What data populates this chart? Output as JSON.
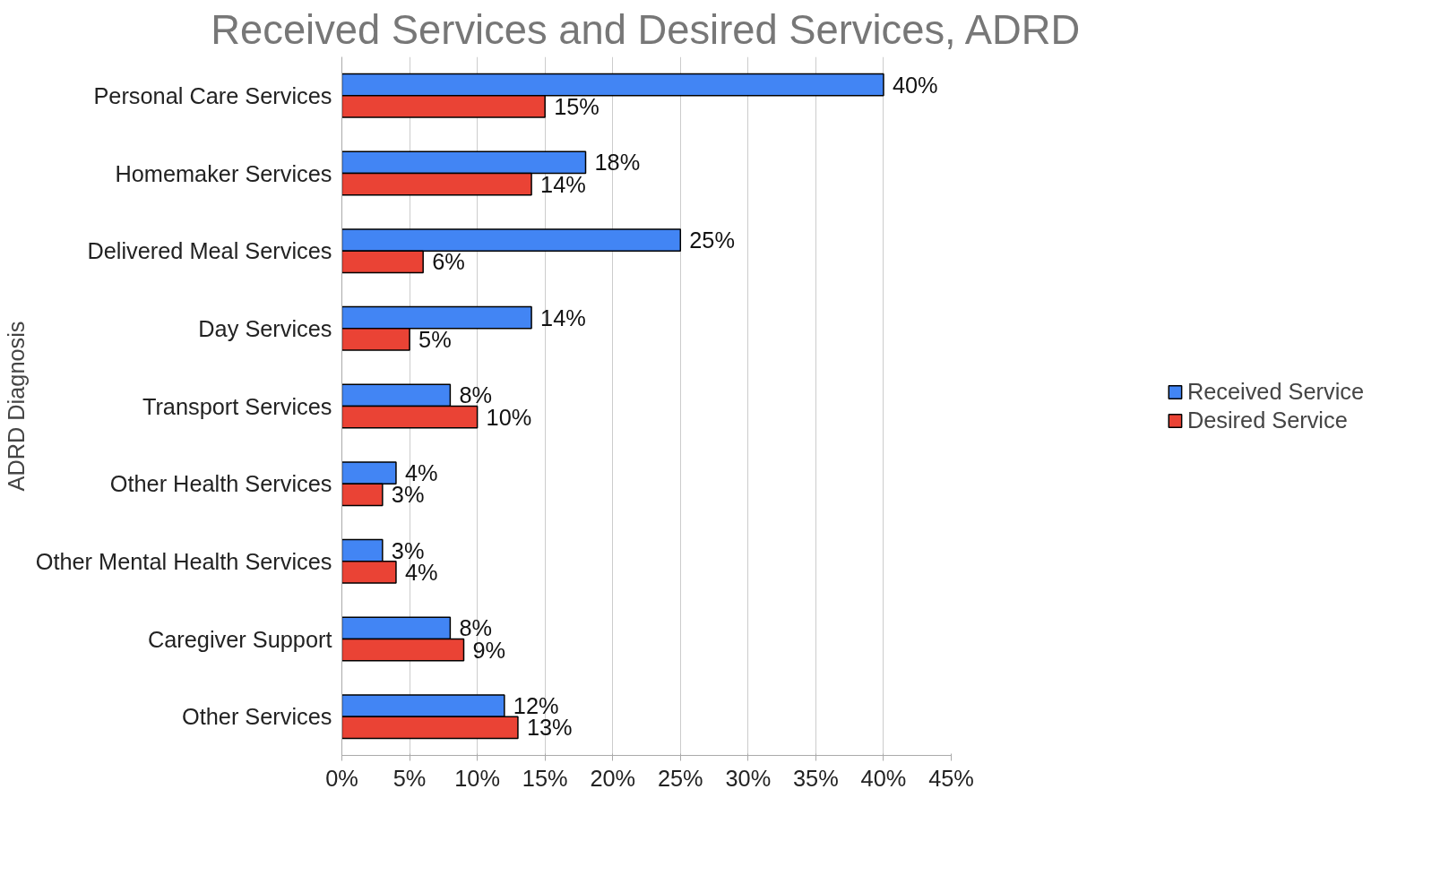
{
  "chart_data": {
    "type": "bar",
    "orientation": "horizontal",
    "title": "Received Services and Desired Services, ADRD",
    "ylabel": "ADRD Diagnosis",
    "categories": [
      "Personal Care Services",
      "Homemaker Services",
      "Delivered Meal Services",
      "Day Services",
      "Transport Services",
      "Other Health Services",
      "Other Mental Health Services",
      "Caregiver Support",
      "Other Services"
    ],
    "series": [
      {
        "name": "Received Service",
        "color": "#4285f4",
        "values": [
          40,
          18,
          25,
          14,
          8,
          4,
          3,
          8,
          12
        ],
        "value_labels": [
          "40%",
          "18%",
          "25%",
          "14%",
          "8%",
          "4%",
          "3%",
          "8%",
          "12%"
        ]
      },
      {
        "name": "Desired Service",
        "color": "#ea4335",
        "values": [
          15,
          14,
          6,
          5,
          10,
          3,
          4,
          9,
          13
        ],
        "value_labels": [
          "15%",
          "14%",
          "6%",
          "5%",
          "10%",
          "3%",
          "4%",
          "9%",
          "13%"
        ]
      }
    ],
    "xlim": [
      0,
      45
    ],
    "xticks": [
      {
        "value": 0,
        "label": "0%"
      },
      {
        "value": 5,
        "label": "5%"
      },
      {
        "value": 10,
        "label": "10%"
      },
      {
        "value": 15,
        "label": "15%"
      },
      {
        "value": 20,
        "label": "20%"
      },
      {
        "value": 25,
        "label": "25%"
      },
      {
        "value": 30,
        "label": "30%"
      },
      {
        "value": 35,
        "label": "35%"
      },
      {
        "value": 40,
        "label": "40%"
      },
      {
        "value": 45,
        "label": "45%"
      }
    ],
    "grid": "x",
    "legend": "right"
  }
}
